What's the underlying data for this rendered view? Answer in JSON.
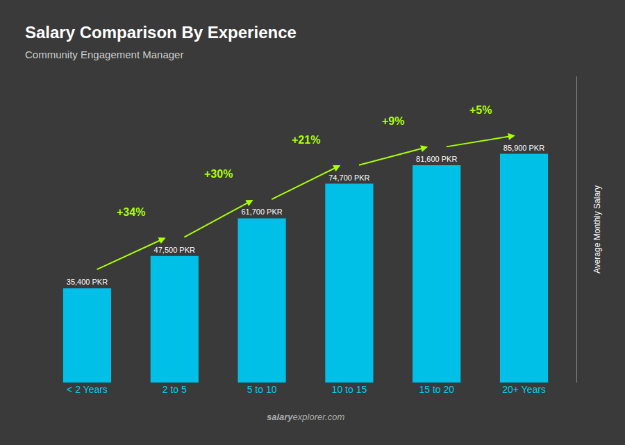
{
  "chart_data": {
    "type": "bar",
    "title": "Salary Comparison By Experience",
    "subtitle": "Community Engagement Manager",
    "categories": [
      "< 2 Years",
      "2 to 5",
      "5 to 10",
      "10 to 15",
      "15 to 20",
      "20+ Years"
    ],
    "values": [
      35400,
      47500,
      61700,
      74700,
      81600,
      85900
    ],
    "value_labels": [
      "35,400 PKR",
      "47,500 PKR",
      "61,700 PKR",
      "74,700 PKR",
      "81,600 PKR",
      "85,900 PKR"
    ],
    "data_labels": true,
    "color": "#00C0E8",
    "ylabel": "Average Monthly Salary",
    "ylim": [
      0,
      115000
    ],
    "tick_labels": "x",
    "grid": false,
    "annotations": [
      {
        "text": "+34%",
        "from": "< 2 Years",
        "to": "2 to 5",
        "color": "#AAFF00"
      },
      {
        "text": "+30%",
        "from": "2 to 5",
        "to": "5 to 10",
        "color": "#AAFF00"
      },
      {
        "text": "+21%",
        "from": "5 to 10",
        "to": "10 to 15",
        "color": "#AAFF00"
      },
      {
        "text": "+9%",
        "from": "10 to 15",
        "to": "15 to 20",
        "color": "#AAFF00"
      },
      {
        "text": "+5%",
        "from": "15 to 20",
        "to": "20+ Years",
        "color": "#AAFF00"
      }
    ],
    "footer": [
      "salary",
      "explorer.com"
    ]
  }
}
